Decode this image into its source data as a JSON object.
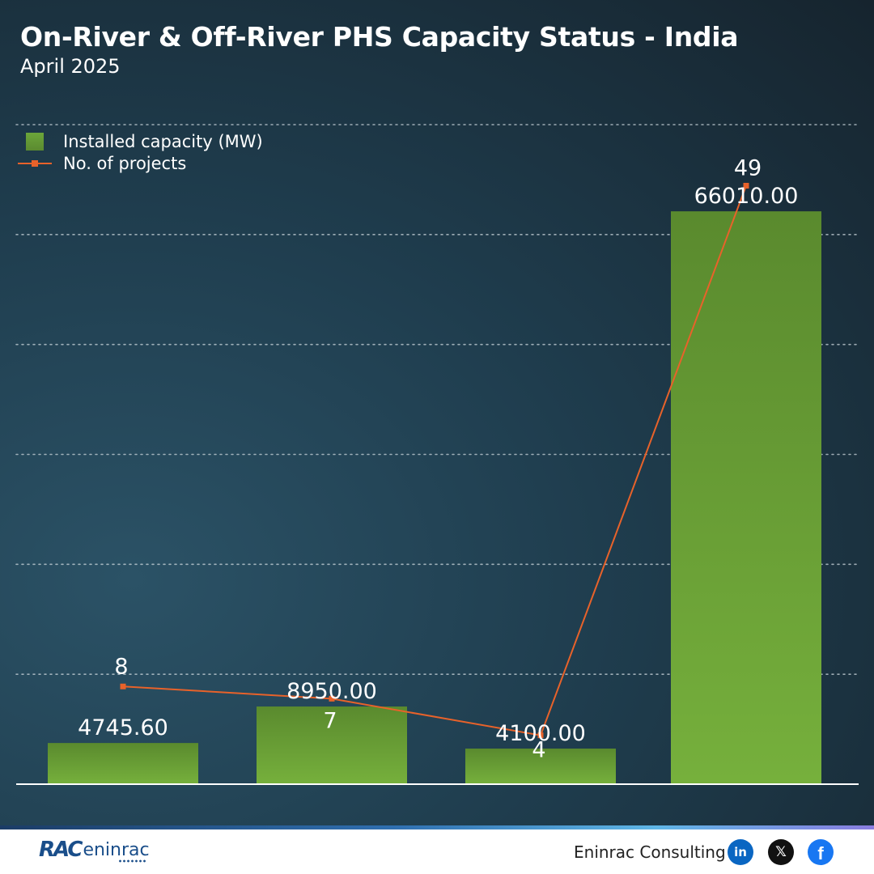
{
  "chart_data": {
    "type": "bar",
    "title": "On-River & Off-River PHS Capacity Status - India",
    "subtitle": "April 2025",
    "categories": [
      "",
      "",
      "",
      ""
    ],
    "series": [
      {
        "name": "Installed capacity (MW)",
        "type": "bar",
        "values": [
          4745.6,
          8950.0,
          4100.0,
          66010.0
        ],
        "labels": [
          "4745.60",
          "8950.00",
          "4100.00",
          "66010.00"
        ],
        "color": "#6ca63a"
      },
      {
        "name": "No. of projects",
        "type": "line",
        "values": [
          8,
          7,
          4,
          49
        ],
        "labels": [
          "8",
          "7",
          "4",
          "49"
        ],
        "color": "#e8622a"
      }
    ],
    "ylim": [
      0,
      76000
    ],
    "y2lim": [
      0,
      54
    ],
    "grid": true,
    "legend_position": "top-left"
  },
  "footer": {
    "logo_mark": "RAC",
    "logo_word": "eninrac",
    "company": "Eninrac Consulting",
    "social_icons": [
      "linkedin-icon",
      "x-icon",
      "facebook-icon"
    ],
    "social_colors": [
      "#0a66c2",
      "#111111",
      "#1877f2"
    ]
  }
}
